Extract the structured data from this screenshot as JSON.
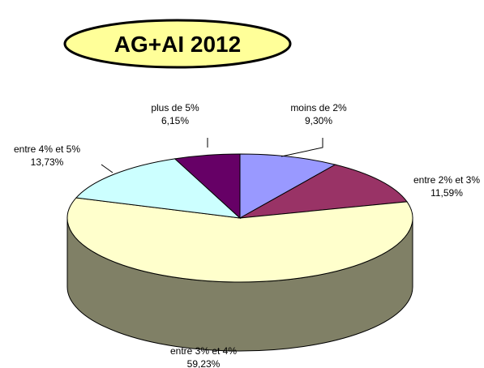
{
  "chart_data": {
    "type": "pie",
    "title": "AG+AI 2012",
    "slices": [
      {
        "name": "moins de 2%",
        "value_label": "9,30%",
        "value": 9.3,
        "color": "#9999ff",
        "side_color": "#6b6bb3"
      },
      {
        "name": "entre 2% et 3%",
        "value_label": "11,59%",
        "value": 11.59,
        "color": "#993366",
        "side_color": "#6b2447"
      },
      {
        "name": "entre 3% et 4%",
        "value_label": "59,23%",
        "value": 59.23,
        "color": "#ffffcc",
        "side_color": "#808066"
      },
      {
        "name": "entre 4% et 5%",
        "value_label": "13,73%",
        "value": 13.73,
        "color": "#ccffff",
        "side_color": "#8fb3b3"
      },
      {
        "name": "plus de 5%",
        "value_label": "6,15%",
        "value": 6.15,
        "color": "#660066",
        "side_color": "#470047"
      }
    ],
    "colors": {
      "title_fill": "#ffff99",
      "title_border": "#000000",
      "outline": "#000000",
      "leader_line": "#000000"
    }
  }
}
